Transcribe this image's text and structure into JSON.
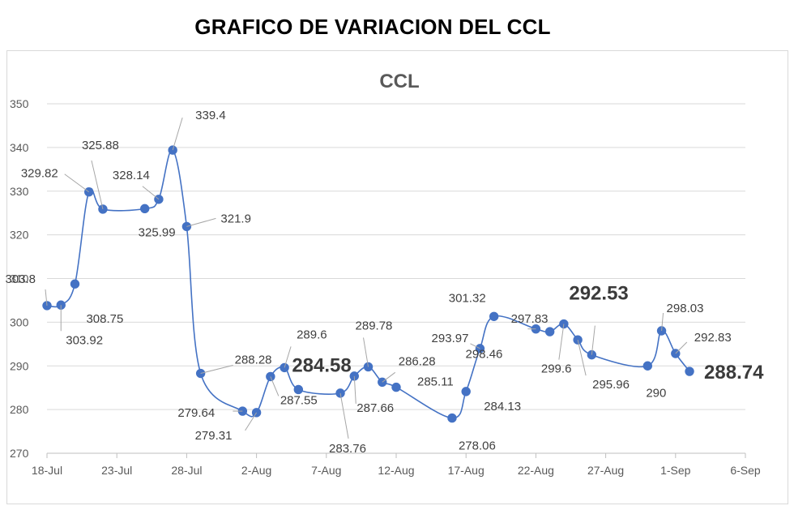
{
  "page_title": "GRAFICO DE VARIACION DEL CCL",
  "chart_data": {
    "type": "line",
    "title": "CCL",
    "xlabel": "",
    "ylabel": "",
    "ylim": [
      270,
      350
    ],
    "y_ticks": [
      270,
      280,
      290,
      300,
      310,
      320,
      330,
      340,
      350
    ],
    "x_ticks": [
      "18-Jul",
      "23-Jul",
      "28-Jul",
      "2-Aug",
      "7-Aug",
      "12-Aug",
      "17-Aug",
      "22-Aug",
      "27-Aug",
      "1-Sep",
      "6-Sep"
    ],
    "grid": true,
    "legend": "none",
    "smooth": true,
    "color": "#4472c4",
    "series": [
      {
        "points": [
          {
            "x": "18-Jul",
            "y": 303.8,
            "label": "303.8"
          },
          {
            "x": "19-Jul",
            "y": 303.92,
            "label": "303.92"
          },
          {
            "x": "20-Jul",
            "y": 308.75,
            "label": "308.75"
          },
          {
            "x": "21-Jul",
            "y": 329.82,
            "label": "329.82"
          },
          {
            "x": "22-Jul",
            "y": 325.88,
            "label": "325.88"
          },
          {
            "x": "25-Jul",
            "y": 325.99,
            "label": "325.99"
          },
          {
            "x": "26-Jul",
            "y": 328.14,
            "label": "328.14"
          },
          {
            "x": "27-Jul",
            "y": 339.4,
            "label": "339.4"
          },
          {
            "x": "28-Jul",
            "y": 321.9,
            "label": "321.9"
          },
          {
            "x": "29-Jul",
            "y": 288.28,
            "label": "288.28"
          },
          {
            "x": "1-Aug",
            "y": 279.64,
            "label": "279.64"
          },
          {
            "x": "2-Aug",
            "y": 279.31,
            "label": "279.31"
          },
          {
            "x": "3-Aug",
            "y": 287.55,
            "label": "287.55"
          },
          {
            "x": "4-Aug",
            "y": 289.6,
            "label": "289.6"
          },
          {
            "x": "5-Aug",
            "y": 284.58,
            "label": "284.58"
          },
          {
            "x": "8-Aug",
            "y": 283.76,
            "label": "283.76"
          },
          {
            "x": "9-Aug",
            "y": 287.66,
            "label": "287.66"
          },
          {
            "x": "10-Aug",
            "y": 289.78,
            "label": "289.78"
          },
          {
            "x": "11-Aug",
            "y": 286.28,
            "label": "286.28"
          },
          {
            "x": "12-Aug",
            "y": 285.11,
            "label": "285.11"
          },
          {
            "x": "16-Aug",
            "y": 278.06,
            "label": "278.06"
          },
          {
            "x": "17-Aug",
            "y": 284.13,
            "label": "284.13"
          },
          {
            "x": "18-Aug",
            "y": 293.97,
            "label": "293.97"
          },
          {
            "x": "19-Aug",
            "y": 301.32,
            "label": "301.32"
          },
          {
            "x": "22-Aug",
            "y": 298.46,
            "label": "298.46"
          },
          {
            "x": "23-Aug",
            "y": 297.83,
            "label": "297.83"
          },
          {
            "x": "24-Aug",
            "y": 299.6,
            "label": "299.6"
          },
          {
            "x": "25-Aug",
            "y": 295.96,
            "label": "295.96"
          },
          {
            "x": "26-Aug",
            "y": 292.53,
            "label": "292.53"
          },
          {
            "x": "30-Aug",
            "y": 290.0,
            "label": "290"
          },
          {
            "x": "31-Aug",
            "y": 298.03,
            "label": "298.03"
          },
          {
            "x": "1-Sep",
            "y": 292.83,
            "label": "292.83"
          },
          {
            "x": "2-Sep",
            "y": 288.74,
            "label": "288.74"
          }
        ]
      }
    ]
  }
}
